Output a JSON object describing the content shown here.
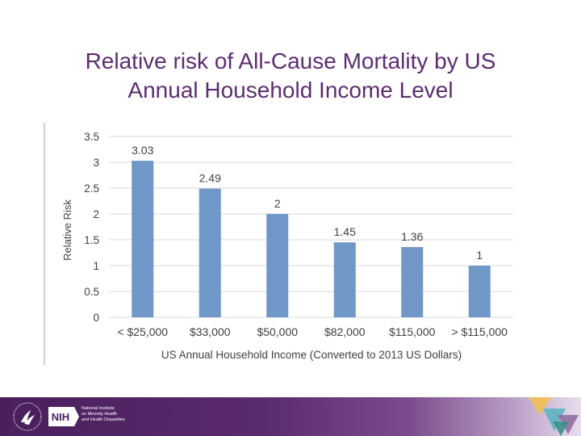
{
  "slide": {
    "title_line1": "Relative risk of All-Cause Mortality by US",
    "title_line2": "Annual Household Income Level"
  },
  "footer": {
    "org_line1": "National Institute",
    "org_line2": "on Minority Health",
    "org_line3": "and Health Disparities",
    "nih_label": "NIH"
  },
  "chart_data": {
    "type": "bar",
    "title": "",
    "xlabel": "US Annual Household Income (Converted to 2013 US Dollars)",
    "ylabel": "Relative Risk",
    "categories": [
      "< $25,000",
      "$33,000",
      "$50,000",
      "$82,000",
      "$115,000",
      "> $115,000"
    ],
    "values": [
      3.03,
      2.49,
      2,
      1.45,
      1.36,
      1
    ],
    "value_labels": [
      "3.03",
      "2.49",
      "2",
      "1.45",
      "1.36",
      "1"
    ],
    "ylim": [
      0,
      3.5
    ],
    "yticks": [
      0,
      0.5,
      1,
      1.5,
      2,
      2.5,
      3,
      3.5
    ],
    "ytick_labels": [
      "0",
      "0.5",
      "1",
      "1.5",
      "2",
      "2.5",
      "3",
      "3.5"
    ],
    "grid": true,
    "bar_color": "#6f97c7",
    "grid_color": "#d9d9d9",
    "text_color": "#404040"
  }
}
